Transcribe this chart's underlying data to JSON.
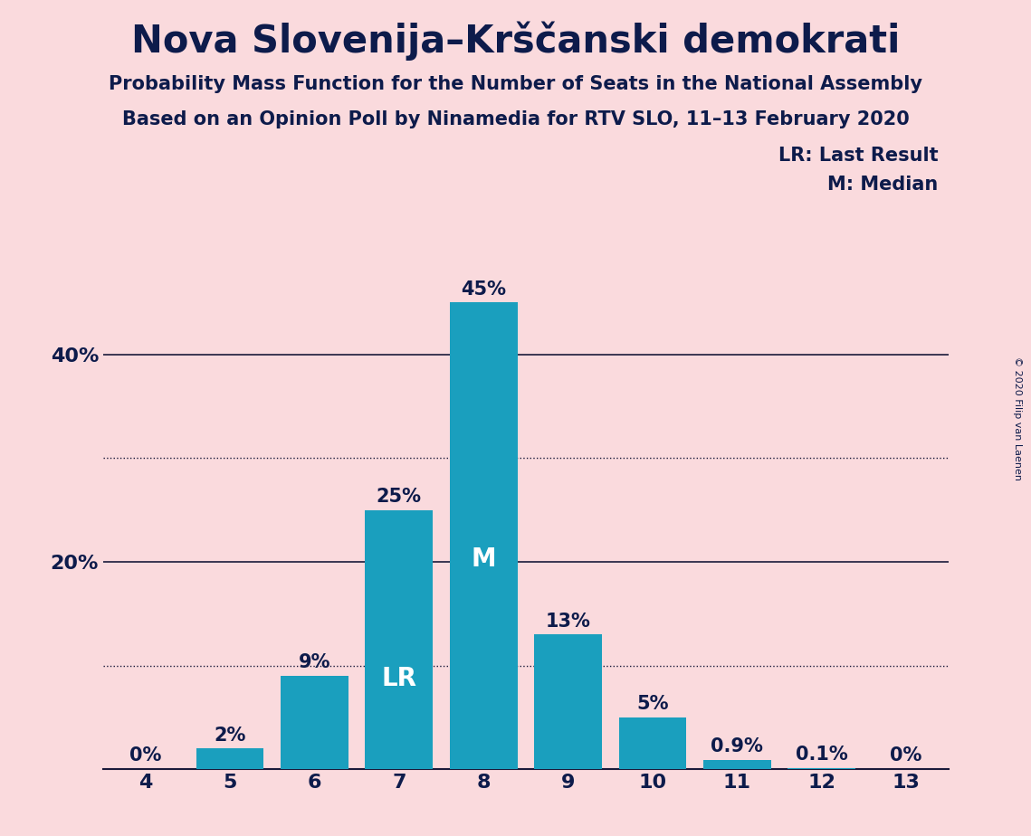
{
  "title": "Nova Slovenija–Krščanski demokrati",
  "subtitle1": "Probability Mass Function for the Number of Seats in the National Assembly",
  "subtitle2": "Based on an Opinion Poll by Ninamedia for RTV SLO, 11–13 February 2020",
  "copyright": "© 2020 Filip van Laenen",
  "seats": [
    4,
    5,
    6,
    7,
    8,
    9,
    10,
    11,
    12,
    13
  ],
  "probabilities": [
    0.0,
    2.0,
    9.0,
    25.0,
    45.0,
    13.0,
    5.0,
    0.9,
    0.1,
    0.0
  ],
  "bar_color": "#1a9fbe",
  "background_color": "#fadadd",
  "text_color": "#0d1b4b",
  "label_outside_color": "#0d1b4b",
  "label_inside_color": "#ffffff",
  "lr_seat": 7,
  "median_seat": 8,
  "lr_label": "LR",
  "median_label": "M",
  "legend_lr": "LR: Last Result",
  "legend_m": "M: Median",
  "ylim_max": 50,
  "solid_gridlines": [
    20.0,
    40.0
  ],
  "dotted_gridlines": [
    10.0,
    30.0
  ],
  "ytick_positions": [
    20.0,
    40.0
  ],
  "ytick_labels": [
    "20%",
    "40%"
  ],
  "figsize": [
    11.39,
    9.24
  ],
  "dpi": 100,
  "title_fontsize": 30,
  "subtitle_fontsize": 15,
  "tick_fontsize": 16,
  "bar_label_fontsize": 15,
  "inside_label_fontsize": 20,
  "legend_fontsize": 15,
  "copyright_fontsize": 8
}
